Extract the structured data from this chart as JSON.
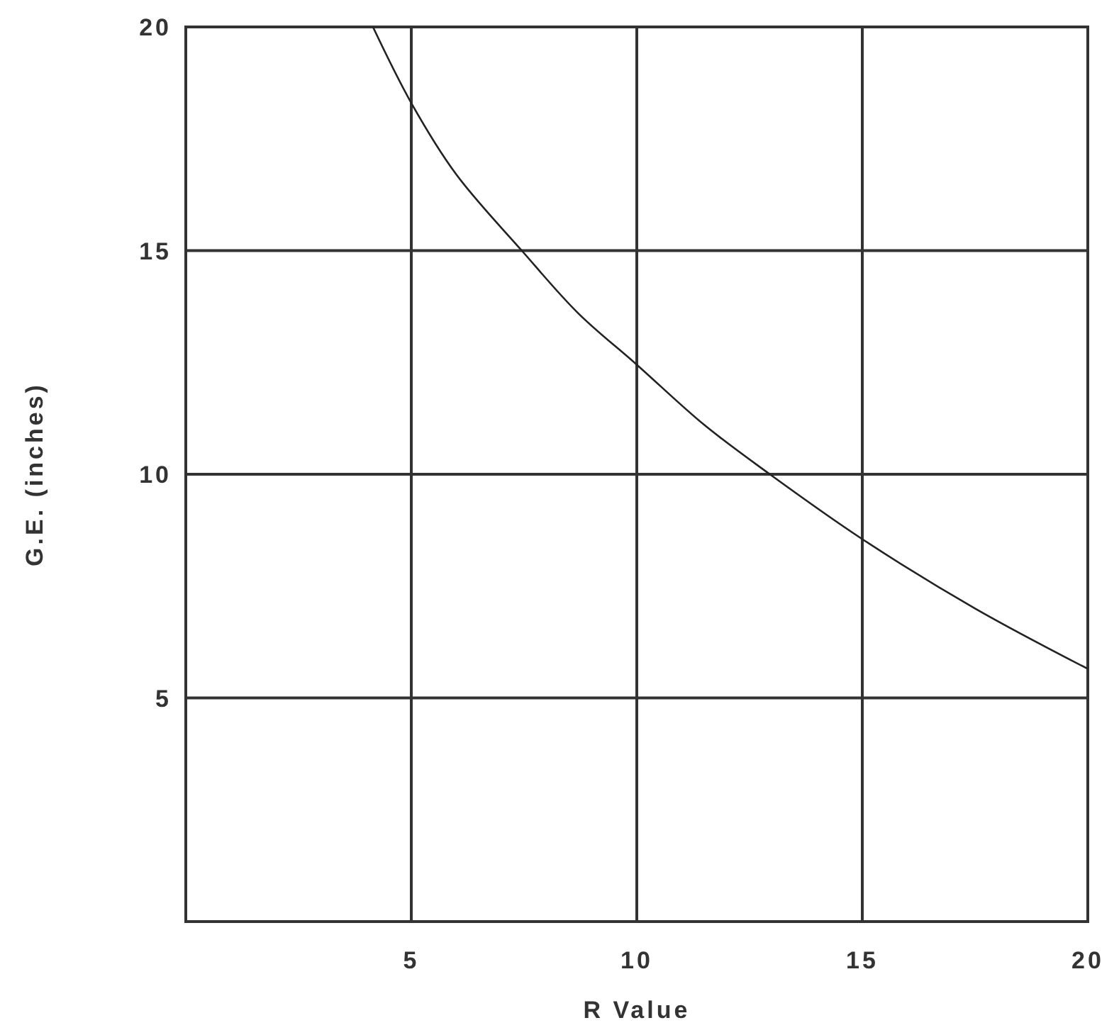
{
  "chart_data": {
    "type": "line",
    "xlabel": "R Value",
    "ylabel": "G.E. (inches)",
    "xlim": [
      0,
      20
    ],
    "ylim": [
      0,
      20
    ],
    "xticks": [
      5,
      10,
      15,
      20
    ],
    "yticks": [
      5,
      10,
      15,
      20
    ],
    "grid": true,
    "marker": "none",
    "line_style": "solid",
    "series": [
      {
        "color": "#222222",
        "x": [
          4.15,
          5,
          6,
          7.45,
          8.7,
          10,
          11.5,
          12.95,
          15,
          17.5,
          20
        ],
        "values": [
          20,
          18.3,
          16.7,
          15,
          13.6,
          12.45,
          11.1,
          10,
          8.55,
          7,
          5.65
        ]
      }
    ]
  }
}
